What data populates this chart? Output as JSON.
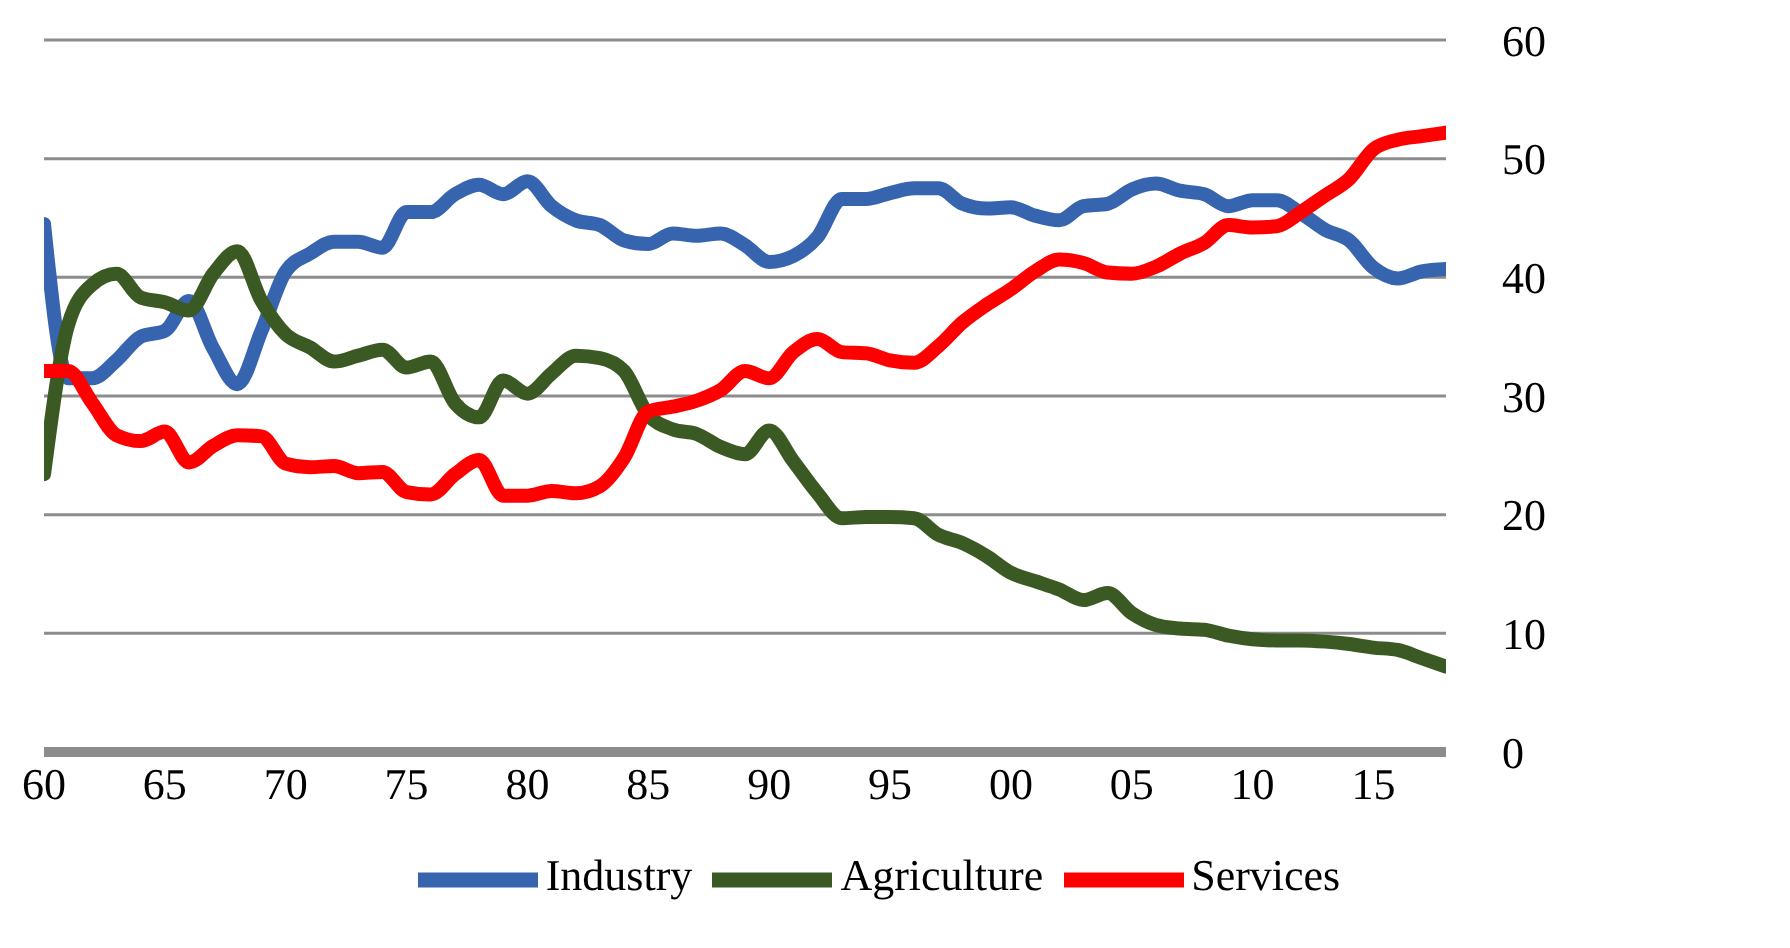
{
  "chart_data": {
    "type": "line",
    "x": [
      1960,
      1961,
      1962,
      1963,
      1964,
      1965,
      1966,
      1967,
      1968,
      1969,
      1970,
      1971,
      1972,
      1973,
      1974,
      1975,
      1976,
      1977,
      1978,
      1979,
      1980,
      1981,
      1982,
      1983,
      1984,
      1985,
      1986,
      1987,
      1988,
      1989,
      1990,
      1991,
      1992,
      1993,
      1994,
      1995,
      1996,
      1997,
      1998,
      1999,
      2000,
      2001,
      2002,
      2003,
      2004,
      2005,
      2006,
      2007,
      2008,
      2009,
      2010,
      2011,
      2012,
      2013,
      2014,
      2015,
      2016,
      2017,
      2018
    ],
    "series": [
      {
        "name": "Industry",
        "color": "#3764ae",
        "values": [
          44.5,
          31.5,
          31.5,
          33,
          35,
          35.5,
          38,
          34,
          31,
          35.5,
          40.5,
          42,
          43,
          43,
          42.5,
          45.5,
          45.5,
          47,
          47.8,
          47,
          48.1,
          46,
          44.8,
          44.4,
          43.1,
          42.8,
          43.7,
          43.5,
          43.7,
          42.7,
          41.3,
          41.8,
          43.4,
          46.6,
          46.6,
          47.1,
          47.5,
          47.5,
          46.2,
          45.8,
          45.9,
          45.2,
          44.8,
          46,
          46.2,
          47.4,
          47.9,
          47.3,
          47,
          46,
          46.5,
          46.5,
          45.4,
          44,
          43.1,
          40.8,
          39.9,
          40.5,
          40.7
        ]
      },
      {
        "name": "Agriculture",
        "color": "#3b5a23",
        "values": [
          23.4,
          36,
          39.4,
          40.3,
          38.3,
          37.9,
          37.2,
          40.3,
          42.2,
          38,
          35.2,
          34.1,
          32.9,
          33.4,
          33.9,
          32.4,
          32.9,
          29.4,
          28.2,
          31.3,
          30.2,
          31.9,
          33.4,
          33.2,
          32.1,
          28.4,
          27.2,
          26.8,
          25.7,
          25.1,
          27.1,
          24.5,
          21.8,
          19.7,
          19.8,
          19.8,
          19.7,
          18.3,
          17.6,
          16.5,
          15.1,
          14.4,
          13.7,
          12.8,
          13.4,
          11.7,
          10.7,
          10.4,
          10.3,
          9.8,
          9.5,
          9.4,
          9.4,
          9.3,
          9.1,
          8.8,
          8.6,
          7.9,
          7.2
        ]
      },
      {
        "name": "Services",
        "color": "#ff0000",
        "values": [
          32.1,
          32.1,
          29.4,
          26.7,
          26.2,
          27,
          24.4,
          25.8,
          26.7,
          26.6,
          24.3,
          24,
          24.1,
          23.5,
          23.6,
          21.9,
          21.7,
          23.4,
          24.6,
          21.6,
          21.6,
          22,
          21.8,
          22.4,
          24.8,
          28.7,
          29.1,
          29.6,
          30.5,
          32.1,
          31.5,
          33.7,
          34.8,
          33.7,
          33.6,
          33,
          32.8,
          34.2,
          36.2,
          37.7,
          39,
          40.5,
          41.5,
          41.2,
          40.4,
          40.3,
          40.9,
          42,
          42.9,
          44.4,
          44.2,
          44.3,
          45.5,
          46.9,
          48.3,
          50.8,
          51.6,
          51.9,
          52.2
        ]
      }
    ],
    "xlim": [
      1960,
      2018
    ],
    "xticks": [
      {
        "value": 1960,
        "label": "60"
      },
      {
        "value": 1965,
        "label": "65"
      },
      {
        "value": 1970,
        "label": "70"
      },
      {
        "value": 1975,
        "label": "75"
      },
      {
        "value": 1980,
        "label": "80"
      },
      {
        "value": 1985,
        "label": "85"
      },
      {
        "value": 1990,
        "label": "90"
      },
      {
        "value": 1995,
        "label": "95"
      },
      {
        "value": 2000,
        "label": "00"
      },
      {
        "value": 2005,
        "label": "05"
      },
      {
        "value": 2010,
        "label": "10"
      },
      {
        "value": 2015,
        "label": "15"
      }
    ],
    "ylim": [
      0,
      60
    ],
    "yticks": [
      0,
      10,
      20,
      30,
      40,
      50,
      60
    ],
    "grid": "y",
    "legend": "bottom",
    "marker": "none",
    "line_style": "solid"
  }
}
